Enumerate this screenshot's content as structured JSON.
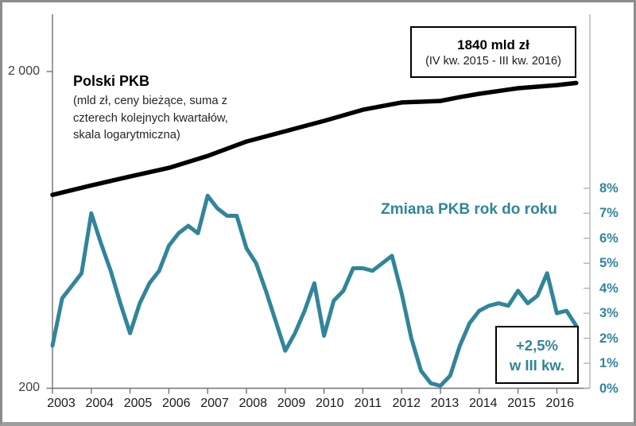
{
  "frame": {
    "background": "#ffffff",
    "border_color": "#8c8c8c"
  },
  "title": {
    "text": "Polski PKB",
    "subtitle_lines": [
      "(mld zł, ceny bieżące, suma z",
      "czterech kolejnych kwartałów,",
      "skala logarytmiczna)"
    ]
  },
  "series_label": "Zmiana PKB rok do roku",
  "annotations": {
    "gdp_box": {
      "line1": "1840 mld zł",
      "line2": "(IV kw. 2015 - III kw. 2016)"
    },
    "growth_box": {
      "line1": "+2,5%",
      "line2": "w III kw."
    }
  },
  "colors": {
    "gdp_line": "#000000",
    "growth_line": "#31859B",
    "axis_dark": "#737373",
    "axis_light": "#B3B3B3",
    "year_label": "#1A1A1A",
    "left_label": "#404040"
  },
  "chart_data": {
    "type": "line",
    "title": "Polski PKB (mld zł, ceny bieżące, suma z czterech kolejnych kwartałów, skala logarytmiczna)",
    "x_axis": {
      "tick_labels": [
        "2003",
        "2004",
        "2005",
        "2006",
        "2007",
        "2008",
        "2009",
        "2010",
        "2011",
        "2012",
        "2013",
        "2014",
        "2015",
        "2016"
      ]
    },
    "left_axis": {
      "scale": "log",
      "unit": "mld zł",
      "tick_labels": [
        "2 000",
        "200"
      ],
      "tick_values": [
        2000,
        200
      ]
    },
    "right_axis": {
      "unit": "%",
      "tick_labels": [
        "0%",
        "1%",
        "2%",
        "3%",
        "4%",
        "5%",
        "6%",
        "7%",
        "8%"
      ],
      "range": [
        0,
        8
      ]
    },
    "series": [
      {
        "name": "Polski PKB",
        "axis": "left",
        "color": "#000000",
        "unit": "mld zł",
        "x": [
          2003,
          2004,
          2005,
          2006,
          2007,
          2008,
          2009,
          2010,
          2011,
          2012,
          2012.5,
          2013,
          2013.5,
          2014,
          2015,
          2016,
          2016.5
        ],
        "values": [
          816,
          874,
          932,
          993,
          1083,
          1202,
          1296,
          1397,
          1515,
          1597,
          1606,
          1615,
          1660,
          1701,
          1771,
          1812,
          1840
        ]
      },
      {
        "name": "Zmiana PKB rok do roku",
        "axis": "right",
        "color": "#31859B",
        "unit": "%",
        "frequency": "quarterly",
        "start": "2003 Q1",
        "end": "2016 Q3",
        "values": [
          1.7,
          3.6,
          4.1,
          4.6,
          7.0,
          5.8,
          4.7,
          3.4,
          2.2,
          3.4,
          4.2,
          4.7,
          5.7,
          6.2,
          6.5,
          6.2,
          7.7,
          7.2,
          6.9,
          6.9,
          5.6,
          5.0,
          3.9,
          2.7,
          1.5,
          2.2,
          3.1,
          4.2,
          2.1,
          3.5,
          3.9,
          4.8,
          4.8,
          4.7,
          5.0,
          5.3,
          3.8,
          2.0,
          0.7,
          0.2,
          0.1,
          0.5,
          1.7,
          2.6,
          3.1,
          3.3,
          3.4,
          3.3,
          3.9,
          3.4,
          3.7,
          4.6,
          3.0,
          3.1,
          2.5
        ]
      }
    ]
  }
}
